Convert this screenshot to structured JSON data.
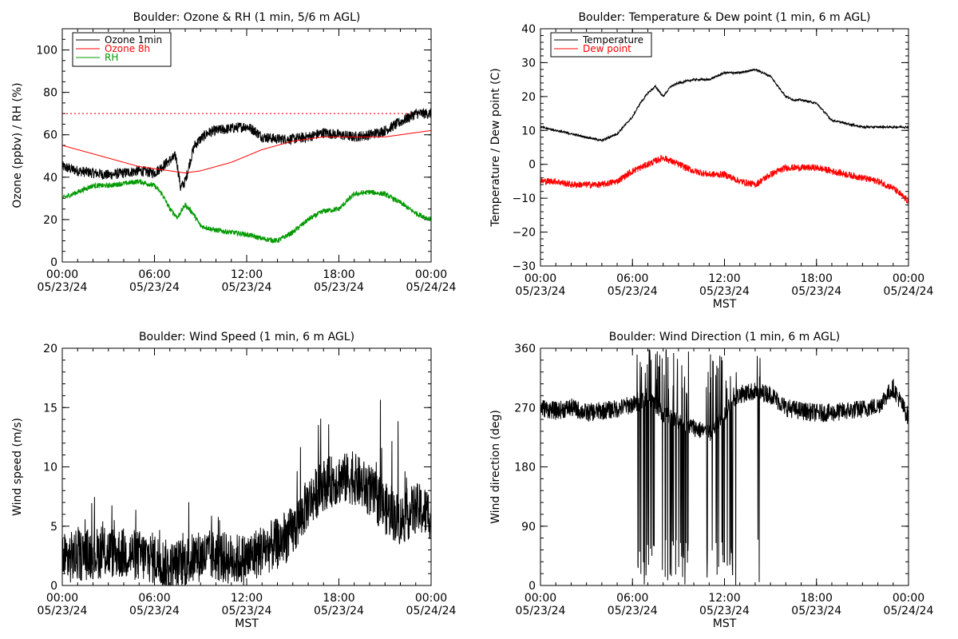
{
  "charts": [
    {
      "id": "ozone-rh",
      "title": "Boulder: Ozone & RH (1 min, 5/6 m AGL)",
      "ylabel": "Ozone (ppbv) / RH (%)",
      "xlabel": "",
      "ymin": 0,
      "ymax": 110,
      "yticks": [
        "0",
        "20",
        "40",
        "60",
        "80",
        "100"
      ],
      "xticks": [
        {
          "time": "00:00",
          "date": "05/23/24"
        },
        {
          "time": "06:00",
          "date": "05/23/24"
        },
        {
          "time": "12:00",
          "date": "05/23/24"
        },
        {
          "time": "18:00",
          "date": "05/23/24"
        },
        {
          "time": "00:00",
          "date": "05/24/24"
        }
      ]
    },
    {
      "id": "temp-dew",
      "title": "Boulder: Temperature & Dew point (1 min, 6 m AGL)",
      "ylabel": "Temperature / Dew point (C)",
      "xlabel": "MST",
      "ymin": -30,
      "ymax": 40,
      "yticks": [
        "−30",
        "−20",
        "−10",
        "0",
        "10",
        "20",
        "30",
        "40"
      ],
      "xticks": [
        {
          "time": "00:00",
          "date": "05/23/24"
        },
        {
          "time": "06:00",
          "date": "05/23/24"
        },
        {
          "time": "12:00",
          "date": "05/23/24"
        },
        {
          "time": "18:00",
          "date": "05/23/24"
        },
        {
          "time": "00:00",
          "date": "05/24/24"
        }
      ]
    },
    {
      "id": "wind-speed",
      "title": "Boulder: Wind Speed (1 min, 6 m AGL)",
      "ylabel": "Wind speed (m/s)",
      "xlabel": "MST",
      "ymin": 0,
      "ymax": 20,
      "yticks": [
        "0",
        "5",
        "10",
        "15",
        "20"
      ],
      "xticks": [
        {
          "time": "00:00",
          "date": "05/23/24"
        },
        {
          "time": "06:00",
          "date": "05/23/24"
        },
        {
          "time": "12:00",
          "date": "05/23/24"
        },
        {
          "time": "18:00",
          "date": "05/23/24"
        },
        {
          "time": "00:00",
          "date": "05/24/24"
        }
      ]
    },
    {
      "id": "wind-dir",
      "title": "Boulder: Wind Direction (1 min, 6 m AGL)",
      "ylabel": "Wind direction (deg)",
      "xlabel": "MST",
      "ymin": 0,
      "ymax": 360,
      "yticks": [
        "0",
        "90",
        "180",
        "270",
        "360"
      ],
      "xticks": [
        {
          "time": "00:00",
          "date": "05/23/24"
        },
        {
          "time": "06:00",
          "date": "05/23/24"
        },
        {
          "time": "12:00",
          "date": "05/23/24"
        },
        {
          "time": "18:00",
          "date": "05/23/24"
        },
        {
          "time": "00:00",
          "date": "05/24/24"
        }
      ]
    }
  ],
  "chart_data": [
    {
      "type": "line",
      "title": "Boulder: Ozone & RH (1 min, 5/6 m AGL)",
      "ylabel": "Ozone (ppbv) / RH (%)",
      "ylim": [
        0,
        110
      ],
      "x_units": "hours MST since 05/23/24 00:00",
      "reference_line": {
        "y": 70,
        "color": "#ff0000",
        "style": "dotted"
      },
      "legend_placement": "top-left",
      "series": [
        {
          "name": "Ozone 1min",
          "color": "#000000",
          "x": [
            0,
            1,
            2,
            3,
            4,
            5,
            6,
            6.5,
            7,
            7.4,
            7.7,
            8,
            8.3,
            8.6,
            9,
            9.5,
            10,
            11,
            12,
            12.5,
            13,
            14,
            15,
            16,
            17,
            18,
            19,
            20,
            21,
            22,
            23,
            24
          ],
          "y": [
            45,
            43,
            42,
            41,
            42,
            43,
            42,
            45,
            48,
            50,
            35,
            38,
            47,
            55,
            58,
            61,
            62,
            63,
            64,
            62,
            59,
            58,
            58,
            59,
            61,
            60,
            59,
            60,
            62,
            66,
            70,
            70
          ],
          "noise": 2.5
        },
        {
          "name": "Ozone 8h",
          "color": "#ff0000",
          "x": [
            0,
            1,
            2,
            3,
            4,
            5,
            6,
            7,
            8,
            9,
            10,
            11,
            12,
            13,
            14,
            15,
            16,
            17,
            18,
            19,
            20,
            21,
            22,
            23,
            24
          ],
          "y": [
            55,
            53,
            51,
            49,
            47,
            45,
            44,
            43,
            42,
            43,
            45,
            47,
            50,
            53,
            55,
            57,
            58,
            59,
            59,
            59,
            59,
            59,
            60,
            61,
            62
          ],
          "noise": 0
        },
        {
          "name": "RH",
          "color": "#009900",
          "x": [
            0,
            1,
            2,
            3,
            4,
            5,
            6,
            6.5,
            7,
            7.5,
            8,
            8.5,
            9,
            10,
            11,
            12,
            13,
            14,
            15,
            16,
            17,
            18,
            19,
            20,
            21,
            22,
            23,
            24
          ],
          "y": [
            30,
            33,
            36,
            36,
            37,
            38,
            36,
            32,
            25,
            21,
            27,
            23,
            17,
            15,
            14,
            13,
            11,
            10,
            14,
            20,
            24,
            25,
            32,
            33,
            32,
            28,
            23,
            20
          ],
          "noise": 1.2
        }
      ]
    },
    {
      "type": "line",
      "title": "Boulder: Temperature & Dew point (1 min, 6 m AGL)",
      "ylabel": "Temperature / Dew point (C)",
      "xlabel": "MST",
      "ylim": [
        -30,
        40
      ],
      "x_units": "hours MST since 05/23/24 00:00",
      "legend_placement": "top-left",
      "series": [
        {
          "name": "Temperature",
          "color": "#000000",
          "x": [
            0,
            1,
            2,
            3,
            4,
            5,
            6,
            6.5,
            7,
            7.5,
            8,
            8.5,
            9,
            10,
            11,
            12,
            13,
            14,
            15,
            16,
            16.5,
            17,
            18,
            19,
            20,
            21,
            22,
            23,
            24
          ],
          "y": [
            11,
            10,
            9,
            8,
            7,
            9,
            14,
            18,
            21,
            23,
            20,
            23,
            24,
            25,
            25,
            27,
            27,
            28,
            26,
            20,
            19,
            19,
            18,
            13,
            12,
            11,
            11,
            11,
            11
          ],
          "noise": 0.3
        },
        {
          "name": "Dew point",
          "color": "#ff0000",
          "x": [
            0,
            1,
            2,
            3,
            4,
            5,
            6,
            6.5,
            7,
            7.5,
            8,
            8.5,
            9,
            10,
            11,
            12,
            13,
            14,
            15,
            16,
            17,
            18,
            19,
            20,
            21,
            22,
            23,
            24
          ],
          "y": [
            -5,
            -5,
            -6,
            -6,
            -6,
            -5,
            -2,
            -1,
            0,
            1,
            2,
            1,
            0,
            -2,
            -3,
            -3,
            -5,
            -6,
            -3,
            -1,
            -1,
            -1,
            -2,
            -3,
            -4,
            -5,
            -7,
            -11
          ],
          "noise": 1.0
        }
      ]
    },
    {
      "type": "line",
      "title": "Boulder: Wind Speed (1 min, 6 m AGL)",
      "ylabel": "Wind speed (m/s)",
      "xlabel": "MST",
      "ylim": [
        0,
        20
      ],
      "x_units": "hours MST since 05/23/24 00:00",
      "series": [
        {
          "color": "#000000",
          "x": [
            0,
            1,
            2,
            3,
            4,
            5,
            6,
            7,
            8,
            9,
            10,
            11,
            12,
            13,
            14,
            15,
            16,
            17,
            18,
            19,
            20,
            21,
            22,
            23,
            24
          ],
          "y": [
            2.2,
            2.5,
            2.7,
            2.8,
            2.7,
            2.5,
            2.3,
            1.5,
            2.0,
            2.5,
            2.5,
            2.2,
            2.2,
            3.0,
            3.5,
            4.5,
            7.0,
            8.5,
            9.0,
            9.0,
            8.0,
            6.5,
            5.5,
            6.5,
            6.0
          ],
          "noise": 2.2
        }
      ]
    },
    {
      "type": "line",
      "title": "Boulder: Wind Direction (1 min, 6 m AGL)",
      "ylabel": "Wind direction (deg)",
      "xlabel": "MST",
      "ylim": [
        0,
        360
      ],
      "x_units": "hours MST since 05/23/24 00:00",
      "series": [
        {
          "color": "#000000",
          "x": [
            0,
            1,
            2,
            3,
            4,
            5,
            6,
            6.5,
            7,
            8,
            9,
            10,
            11,
            12,
            12.5,
            13,
            14,
            15,
            16,
            17,
            18,
            19,
            20,
            21,
            22,
            23,
            24
          ],
          "y": [
            270,
            265,
            270,
            262,
            265,
            268,
            275,
            275,
            290,
            260,
            250,
            240,
            230,
            260,
            280,
            290,
            295,
            290,
            270,
            265,
            262,
            262,
            265,
            268,
            272,
            300,
            255
          ],
          "noise": 14
        }
      ]
    }
  ]
}
